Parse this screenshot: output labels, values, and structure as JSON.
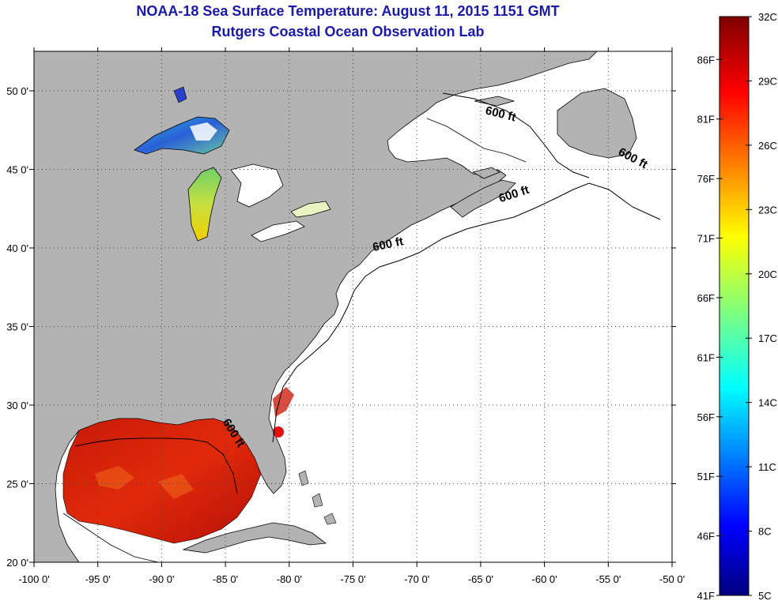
{
  "title": {
    "line1": "NOAA-18 Sea Surface Temperature:  August 11, 2015 1151 GMT",
    "line2": "Rutgers Coastal Ocean Observation Lab"
  },
  "map": {
    "lon_range": [
      -100,
      -50
    ],
    "lat_range": [
      20,
      52
    ],
    "lon_ticks": [
      {
        "lon": -100,
        "label": "-100 0'"
      },
      {
        "lon": -95,
        "label": "-95 0'"
      },
      {
        "lon": -90,
        "label": "-90 0'"
      },
      {
        "lon": -85,
        "label": "-85 0'"
      },
      {
        "lon": -80,
        "label": "-80 0'"
      },
      {
        "lon": -75,
        "label": "-75 0'"
      },
      {
        "lon": -70,
        "label": "-70 0'"
      },
      {
        "lon": -65,
        "label": "-65 0'"
      },
      {
        "lon": -60,
        "label": "-60 0'"
      },
      {
        "lon": -55,
        "label": "-55 0'"
      },
      {
        "lon": -50,
        "label": "-50 0'"
      }
    ],
    "lat_ticks": [
      {
        "lat": 50,
        "label": "50 0'"
      },
      {
        "lat": 45,
        "label": "45 0'"
      },
      {
        "lat": 40,
        "label": "40 0'"
      },
      {
        "lat": 35,
        "label": "35 0'"
      },
      {
        "lat": 30,
        "label": "30 0'"
      },
      {
        "lat": 25,
        "label": "25 0'"
      },
      {
        "lat": 20,
        "label": "20 0'"
      }
    ],
    "contour_labels": [
      {
        "text": "600 ft",
        "lon": -63.5,
        "lat": 48.3,
        "rotate": 14
      },
      {
        "text": "600 ft",
        "lon": -53.2,
        "lat": 45.5,
        "rotate": 28
      },
      {
        "text": "600 ft",
        "lon": -62.3,
        "lat": 43.2,
        "rotate": -18
      },
      {
        "text": "600 ft",
        "lon": -72.2,
        "lat": 40.0,
        "rotate": -12
      },
      {
        "text": "600 ft",
        "lon": -84.6,
        "lat": 28.1,
        "rotate": 58
      }
    ],
    "colors": {
      "land": "#b3b3b3",
      "water": "#ffffff",
      "grid": "#333333",
      "coast": "#000000"
    }
  },
  "colorbar": {
    "celsius": [
      "32C",
      "29C",
      "26C",
      "23C",
      "20C",
      "17C",
      "14C",
      "11C",
      "8C",
      "5C"
    ],
    "fahrenheit": [
      "86F",
      "81F",
      "76F",
      "71F",
      "66F",
      "61F",
      "56F",
      "51F",
      "46F",
      "41F"
    ],
    "min_c": 5,
    "max_c": 32,
    "min_f": 41,
    "max_f": 89.6
  }
}
